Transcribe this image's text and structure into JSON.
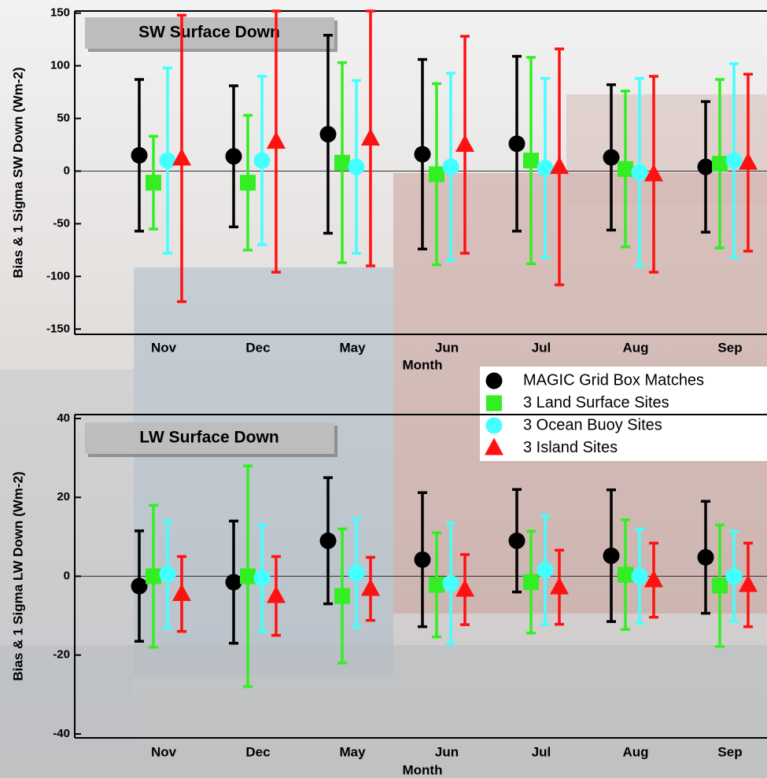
{
  "chart_data": [
    {
      "type": "errorbar",
      "title": "SW Surface Down",
      "xlabel": "Month",
      "ylabel": "Bias & 1 Sigma SW Down (Wm-2)",
      "categories": [
        "Nov",
        "Dec",
        "May",
        "Jun",
        "Jul",
        "Aug",
        "Sep"
      ],
      "ylim": [
        -155,
        152
      ],
      "yticks": [
        -150,
        -100,
        -50,
        0,
        50,
        100,
        150
      ],
      "series": [
        {
          "name": "MAGIC Grid Box Matches",
          "color": "#000000",
          "marker": "circle",
          "values": [
            15,
            14,
            35,
            16,
            26,
            13,
            4
          ],
          "errors": [
            72,
            67,
            94,
            90,
            83,
            69,
            62
          ]
        },
        {
          "name": "3 Land Surface Sites",
          "color": "#33ee22",
          "marker": "square",
          "values": [
            -11,
            -11,
            8,
            -3,
            10,
            2,
            7
          ],
          "errors": [
            44,
            64,
            95,
            86,
            98,
            74,
            80
          ]
        },
        {
          "name": "3 Ocean Buoy Sites",
          "color": "#44ffff",
          "marker": "circle",
          "values": [
            10,
            10,
            4,
            4,
            3,
            -1,
            10
          ],
          "errors": [
            88,
            80,
            82,
            89,
            85,
            89,
            92
          ]
        },
        {
          "name": "3 Island Sites",
          "color": "#ff1111",
          "marker": "triangle",
          "values": [
            12,
            28,
            31,
            25,
            4,
            -3,
            8
          ],
          "errors": [
            136,
            124,
            121,
            103,
            112,
            93,
            84
          ]
        }
      ]
    },
    {
      "type": "errorbar",
      "title": "LW Surface Down",
      "xlabel": "Month",
      "ylabel": "Bias & 1 Sigma LW Down (Wm-2)",
      "categories": [
        "Nov",
        "Dec",
        "May",
        "Jun",
        "Jul",
        "Aug",
        "Sep"
      ],
      "ylim": [
        -41,
        41
      ],
      "yticks": [
        -40,
        -20,
        0,
        20,
        40
      ],
      "series": [
        {
          "color": "#000000",
          "marker": "circle",
          "values": [
            -2.5,
            -1.5,
            9,
            4.2,
            9,
            5.2,
            4.8
          ],
          "errors": [
            14,
            15.5,
            16,
            17,
            13,
            16.7,
            14.2
          ]
        },
        {
          "color": "#33ee22",
          "marker": "square",
          "values": [
            0,
            0,
            -5,
            -2.2,
            -1.5,
            0.4,
            -2.4
          ],
          "errors": [
            18,
            28,
            17,
            13.2,
            12.9,
            13.9,
            15.4
          ]
        },
        {
          "color": "#44ffff",
          "marker": "circle",
          "values": [
            0.5,
            -0.5,
            0.8,
            -1.8,
            1.6,
            0,
            0
          ],
          "errors": [
            13.5,
            13.5,
            13.7,
            15.3,
            13.8,
            12,
            11.4
          ]
        },
        {
          "color": "#ff1111",
          "marker": "triangle",
          "values": [
            -4.5,
            -5,
            -3.2,
            -3.4,
            -2.8,
            -1,
            -2.2
          ],
          "errors": [
            9.5,
            10,
            8,
            8.9,
            9.4,
            9.4,
            10.6
          ]
        }
      ]
    }
  ]
}
